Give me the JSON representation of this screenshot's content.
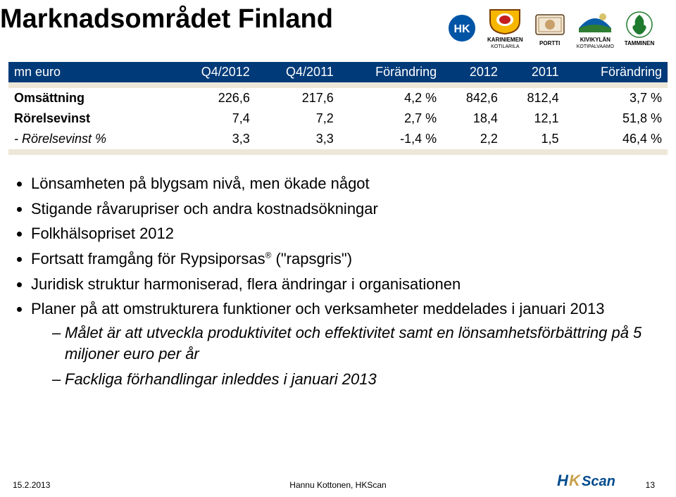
{
  "title": "Marknadsområdet Finland",
  "logos": [
    {
      "name": "hk",
      "label": "",
      "shape": "circle",
      "bg": "#0054a6",
      "fg": "#ffffff",
      "text": "HK"
    },
    {
      "name": "kariniemen",
      "label": "KARINIEMEN",
      "sublabel": "KOTILARILA",
      "shape": "shield",
      "bg": "#f7b700",
      "fg": "#c41e1e"
    },
    {
      "name": "portti",
      "label": "PORTTI",
      "shape": "stamp",
      "bg": "#b5895a",
      "fg": "#5a3a1a"
    },
    {
      "name": "kivikylan",
      "label": "KIVIKYLÄN",
      "sublabel": "KOTIPALVAAMO",
      "shape": "hill",
      "bg": "#0a5ea8",
      "fg": "#ffffff",
      "accent": "#d6c36a"
    },
    {
      "name": "tamminen",
      "label": "TAMMINEN",
      "shape": "oakleaf",
      "bg": "#ffffff",
      "fg": "#1e7a2e"
    }
  ],
  "table": {
    "header_bg": "#003a78",
    "header_fg": "#ffffff",
    "gap_bg": "#ece7d8",
    "columns": [
      "mn euro",
      "Q4/2012",
      "Q4/2011",
      "Förändring",
      "2012",
      "2011",
      "Förändring"
    ],
    "rows": [
      {
        "label": "Omsättning",
        "label_style": "bold",
        "cells": [
          "226,6",
          "217,6",
          "4,2 %",
          "842,6",
          "812,4",
          "3,7 %"
        ]
      },
      {
        "label": "Rörelsevinst",
        "label_style": "bold",
        "cells": [
          "7,4",
          "7,2",
          "2,7 %",
          "18,4",
          "12,1",
          "51,8 %"
        ]
      },
      {
        "label": "- Rörelsevinst %",
        "label_style": "italic",
        "cells": [
          "3,3",
          "3,3",
          "-1,4 %",
          "2,2",
          "1,5",
          "46,4 %"
        ]
      }
    ]
  },
  "bullets": [
    "Lönsamheten på blygsam nivå, men ökade något",
    "Stigande råvarupriser och andra kostnadsökningar",
    "Folkhälsopriset 2012",
    "Fortsatt framgång för Rypsiporsas® (\"rapsgris\")",
    "Juridisk struktur harmoniserad, flera ändringar i organisationen",
    "Planer på att omstrukturera funktioner och verksamheter meddelades i januari 2013"
  ],
  "sub_bullets": [
    "Målet är att utveckla produktivitet och effektivitet samt en lönsamhetsförbättring på 5 miljoner euro per år",
    "Fackliga förhandlingar inleddes i januari 2013"
  ],
  "footer": {
    "left": "15.2.2013",
    "center": "Hannu Kottonen, HKScan",
    "page": "13",
    "brand": "HKScan",
    "brand_h_color": "#004b8d",
    "brand_k_color": "#c8a04a",
    "brand_text_color": "#004b8d"
  }
}
